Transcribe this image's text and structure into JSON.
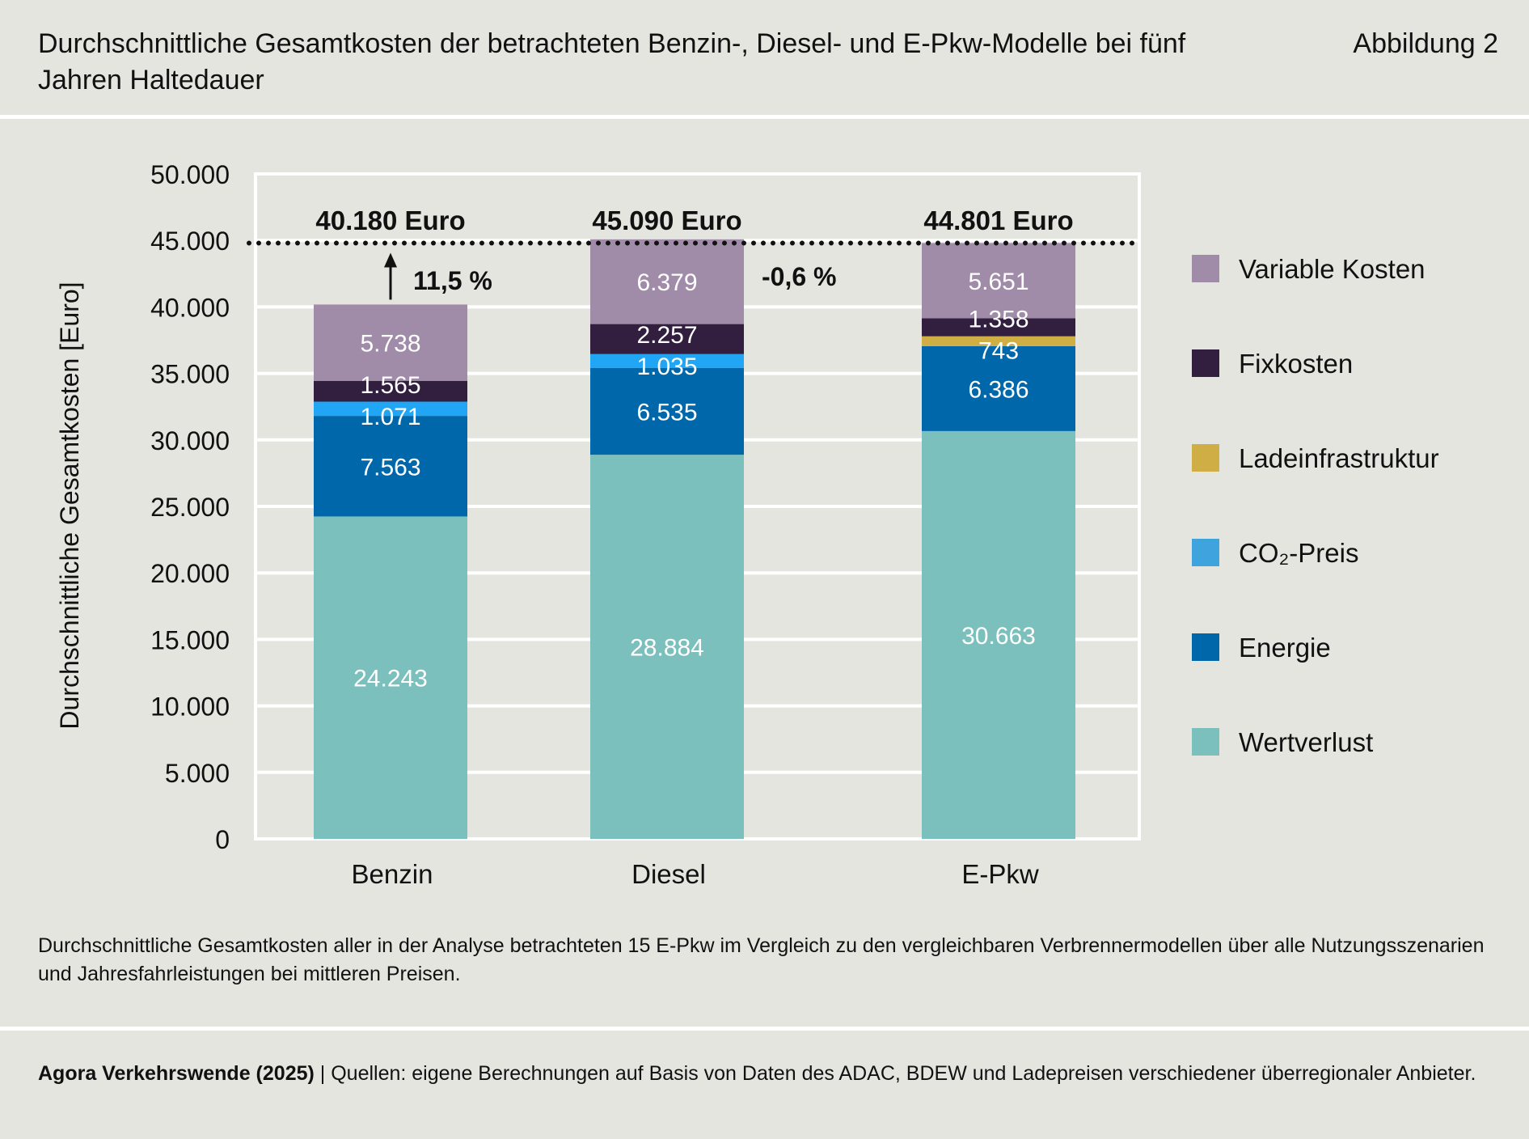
{
  "header": {
    "title": "Durchschnittliche Gesamtkosten der betrachteten Benzin-, Diesel- und E-Pkw-Modelle bei fünf Jahren Haltedauer",
    "figure_label": "Abbildung 2"
  },
  "chart_data": {
    "type": "bar",
    "stacked": true,
    "ylabel": "Durchschnittliche Gesamtkosten [Euro]",
    "ylim": [
      0,
      50000
    ],
    "yticks": [
      "0",
      "5.000",
      "10.000",
      "15.000",
      "20.000",
      "25.000",
      "30.000",
      "35.000",
      "40.000",
      "45.000",
      "50.000"
    ],
    "grid": true,
    "legend_position": "right",
    "categories": [
      "Benzin",
      "Diesel",
      "E-Pkw"
    ],
    "totals": [
      40180,
      45090,
      44801
    ],
    "total_labels": [
      "40.180 Euro",
      "45.090 Euro",
      "44.801 Euro"
    ],
    "series": [
      {
        "name": "Wertverlust",
        "color": "#7bc0bc",
        "values": [
          24243,
          28884,
          30663
        ],
        "labels": [
          "24.243",
          "28.884",
          "30.663"
        ]
      },
      {
        "name": "Energie",
        "color": "#0068aa",
        "values": [
          7563,
          6535,
          6386
        ],
        "labels": [
          "7.563",
          "6.535",
          "6.386"
        ]
      },
      {
        "name": "CO₂-Preis",
        "color": "#20a6f5",
        "legend_color": "#3fa3dd",
        "values": [
          1071,
          1035,
          0
        ],
        "labels": [
          "1.071",
          "1.035",
          ""
        ]
      },
      {
        "name": "Ladeinfrastruktur",
        "color": "#cfae45",
        "values": [
          0,
          0,
          743
        ],
        "labels": [
          "",
          "",
          "743"
        ]
      },
      {
        "name": "Fixkosten",
        "color": "#321f40",
        "values": [
          1565,
          2257,
          1358
        ],
        "labels": [
          "1.565",
          "2.257",
          "1.358"
        ]
      },
      {
        "name": "Variable Kosten",
        "color": "#a08ba8",
        "values": [
          5738,
          6379,
          5651
        ],
        "labels": [
          "5.738",
          "6.379",
          "5.651"
        ]
      }
    ],
    "reference_line": {
      "value": 44801,
      "style": "dotted"
    },
    "annotations": [
      {
        "text": "11,5 %",
        "category": "Benzin",
        "arrow": "up"
      },
      {
        "text": "-0,6 %",
        "category": "Diesel"
      }
    ]
  },
  "caption": "Durchschnittliche Gesamtkosten aller in der Analyse betrachteten 15 E-Pkw im Vergleich zu den vergleichbaren Verbrennermodellen über alle Nutzungsszenarien und Jahresfahrleistungen bei mittleren Preisen.",
  "footer": {
    "source_bold": "Agora Verkehrswende (2025)",
    "source_text": " | Quellen: eigene Berechnungen auf Basis von Daten des ADAC, BDEW und Ladepreisen verschiedener überregionaler Anbieter."
  }
}
